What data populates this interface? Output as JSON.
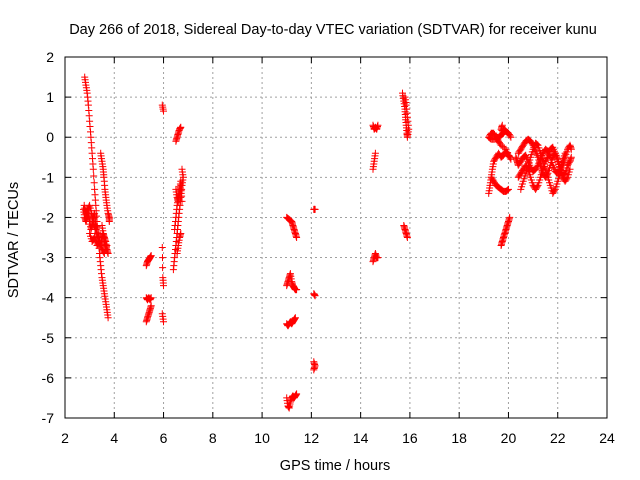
{
  "colors": {
    "series": "#ff0000",
    "grid": "#a0a0a0",
    "axis": "#000000"
  },
  "chart_data": {
    "type": "scatter",
    "title": "Day 266 of 2018, Sidereal Day-to-day VTEC variation (SDTVAR) for receiver kunu",
    "xlabel": "GPS time / hours",
    "ylabel": "SDTVAR / TECUs",
    "xlim": [
      2,
      24
    ],
    "ylim": [
      -7,
      2
    ],
    "xticks": [
      2,
      4,
      6,
      8,
      10,
      12,
      14,
      16,
      18,
      20,
      22,
      24
    ],
    "yticks": [
      -7,
      -6,
      -5,
      -4,
      -3,
      -2,
      -1,
      0,
      1,
      2
    ],
    "grid": true,
    "marker": "+",
    "tracks": [
      [
        [
          2.8,
          1.5
        ],
        [
          2.85,
          1.3
        ],
        [
          2.9,
          1.1
        ],
        [
          2.95,
          0.8
        ],
        [
          3.0,
          0.4
        ],
        [
          3.05,
          0.0
        ],
        [
          3.1,
          -0.4
        ],
        [
          3.15,
          -0.8
        ],
        [
          3.2,
          -1.3
        ],
        [
          3.25,
          -1.7
        ],
        [
          3.3,
          -2.1
        ],
        [
          3.35,
          -2.5
        ],
        [
          3.4,
          -2.9
        ],
        [
          3.45,
          -3.2
        ],
        [
          3.5,
          -3.5
        ],
        [
          3.55,
          -3.7
        ],
        [
          3.6,
          -3.9
        ],
        [
          3.65,
          -4.1
        ],
        [
          3.7,
          -4.3
        ],
        [
          3.75,
          -4.5
        ]
      ],
      [
        [
          2.75,
          -1.8
        ],
        [
          2.8,
          -2.0
        ],
        [
          2.85,
          -2.1
        ],
        [
          2.9,
          -2.0
        ],
        [
          2.95,
          -1.9
        ],
        [
          3.0,
          -2.1
        ],
        [
          3.05,
          -2.3
        ],
        [
          3.1,
          -2.2
        ],
        [
          3.15,
          -2.0
        ],
        [
          3.2,
          -1.9
        ],
        [
          3.25,
          -2.2
        ],
        [
          3.3,
          -2.5
        ],
        [
          3.35,
          -2.4
        ],
        [
          3.4,
          -2.6
        ],
        [
          3.45,
          -2.7
        ],
        [
          3.5,
          -2.5
        ],
        [
          3.55,
          -2.4
        ],
        [
          3.6,
          -2.6
        ],
        [
          3.65,
          -2.8
        ],
        [
          3.7,
          -2.7
        ]
      ],
      [
        [
          2.78,
          -1.7
        ],
        [
          2.85,
          -1.9
        ],
        [
          2.92,
          -1.8
        ],
        [
          3.0,
          -1.7
        ],
        [
          3.08,
          -1.9
        ],
        [
          3.15,
          -2.1
        ],
        [
          3.22,
          -2.3
        ],
        [
          3.3,
          -2.2
        ]
      ],
      [
        [
          3.0,
          -2.4
        ],
        [
          3.1,
          -2.6
        ],
        [
          3.2,
          -2.5
        ],
        [
          3.3,
          -2.7
        ],
        [
          3.4,
          -2.6
        ],
        [
          3.5,
          -2.8
        ],
        [
          3.6,
          -2.9
        ]
      ],
      [
        [
          3.45,
          -0.4
        ],
        [
          3.5,
          -0.6
        ],
        [
          3.55,
          -0.8
        ],
        [
          3.58,
          -1.0
        ],
        [
          3.62,
          -1.3
        ],
        [
          3.66,
          -1.5
        ],
        [
          3.7,
          -1.7
        ],
        [
          3.75,
          -1.9
        ],
        [
          3.8,
          -2.0
        ],
        [
          3.8,
          -2.1
        ]
      ],
      [
        [
          3.5,
          -2.2
        ],
        [
          3.55,
          -2.4
        ],
        [
          3.6,
          -2.5
        ],
        [
          3.65,
          -2.6
        ],
        [
          3.7,
          -2.8
        ],
        [
          3.75,
          -2.9
        ]
      ],
      [
        [
          5.3,
          -3.2
        ],
        [
          5.35,
          -3.1
        ],
        [
          5.4,
          -3.05
        ],
        [
          5.45,
          -3.0
        ],
        [
          5.5,
          -2.95
        ]
      ],
      [
        [
          5.3,
          -4.0
        ],
        [
          5.35,
          -4.05
        ],
        [
          5.4,
          -4.0
        ],
        [
          5.45,
          -4.05
        ],
        [
          5.5,
          -4.0
        ]
      ],
      [
        [
          5.3,
          -4.6
        ],
        [
          5.35,
          -4.5
        ],
        [
          5.4,
          -4.4
        ],
        [
          5.45,
          -4.3
        ],
        [
          5.5,
          -4.2
        ]
      ],
      [
        [
          5.95,
          0.8
        ],
        [
          6.0,
          0.65
        ]
      ],
      [
        [
          5.95,
          -2.75
        ],
        [
          5.97,
          -3.5
        ],
        [
          6.0,
          -3.7
        ]
      ],
      [
        [
          5.95,
          -4.4
        ],
        [
          6.0,
          -4.6
        ]
      ],
      [
        [
          6.4,
          -3.3
        ],
        [
          6.45,
          -3.0
        ],
        [
          6.5,
          -2.7
        ],
        [
          6.55,
          -2.4
        ],
        [
          6.6,
          -2.1
        ],
        [
          6.65,
          -1.8
        ],
        [
          6.7,
          -1.5
        ],
        [
          6.75,
          -1.2
        ],
        [
          6.8,
          -1.0
        ],
        [
          6.75,
          -0.8
        ]
      ],
      [
        [
          6.45,
          -2.3
        ],
        [
          6.5,
          -2.0
        ],
        [
          6.55,
          -1.7
        ],
        [
          6.6,
          -1.5
        ],
        [
          6.65,
          -1.3
        ],
        [
          6.7,
          -1.1
        ]
      ],
      [
        [
          6.55,
          -2.9
        ],
        [
          6.6,
          -2.7
        ],
        [
          6.65,
          -2.5
        ],
        [
          6.7,
          -2.4
        ]
      ],
      [
        [
          6.5,
          -0.1
        ],
        [
          6.55,
          0.0
        ],
        [
          6.6,
          0.1
        ],
        [
          6.65,
          0.2
        ],
        [
          6.7,
          0.25
        ]
      ],
      [
        [
          6.5,
          -1.3
        ],
        [
          6.55,
          -1.5
        ],
        [
          6.6,
          -1.6
        ],
        [
          6.65,
          -1.4
        ],
        [
          6.7,
          -1.2
        ],
        [
          6.75,
          -1.6
        ]
      ],
      [
        [
          11.0,
          -2.0
        ],
        [
          11.1,
          -2.05
        ],
        [
          11.2,
          -2.1
        ],
        [
          11.25,
          -2.2
        ],
        [
          11.3,
          -2.3
        ],
        [
          11.35,
          -2.4
        ],
        [
          11.4,
          -2.5
        ]
      ],
      [
        [
          11.0,
          -3.7
        ],
        [
          11.05,
          -3.6
        ],
        [
          11.1,
          -3.5
        ],
        [
          11.15,
          -3.4
        ],
        [
          11.2,
          -3.6
        ],
        [
          11.25,
          -3.7
        ],
        [
          11.3,
          -3.75
        ],
        [
          11.35,
          -3.8
        ],
        [
          11.4,
          -3.8
        ]
      ],
      [
        [
          11.0,
          -4.65
        ],
        [
          11.05,
          -4.7
        ],
        [
          11.1,
          -4.65
        ],
        [
          11.15,
          -4.6
        ],
        [
          11.2,
          -4.65
        ],
        [
          11.25,
          -4.6
        ],
        [
          11.3,
          -4.55
        ],
        [
          11.35,
          -4.5
        ]
      ],
      [
        [
          11.0,
          -6.5
        ],
        [
          11.05,
          -6.7
        ],
        [
          11.1,
          -6.75
        ],
        [
          11.15,
          -6.6
        ],
        [
          11.2,
          -6.5
        ],
        [
          11.25,
          -6.45
        ],
        [
          11.3,
          -6.5
        ],
        [
          11.35,
          -6.45
        ],
        [
          11.4,
          -6.4
        ]
      ],
      [
        [
          12.1,
          -1.8
        ],
        [
          12.15,
          -1.8
        ]
      ],
      [
        [
          12.1,
          -3.9
        ],
        [
          12.15,
          -3.95
        ]
      ],
      [
        [
          12.1,
          -5.6
        ],
        [
          12.15,
          -5.7
        ],
        [
          12.1,
          -5.8
        ]
      ],
      [
        [
          14.5,
          -0.8
        ],
        [
          14.55,
          -0.6
        ],
        [
          14.6,
          -0.4
        ]
      ],
      [
        [
          14.5,
          -3.1
        ],
        [
          14.55,
          -3.0
        ],
        [
          14.6,
          -2.9
        ],
        [
          14.65,
          -3.0
        ],
        [
          14.7,
          -3.0
        ]
      ],
      [
        [
          14.5,
          0.3
        ],
        [
          14.55,
          0.2
        ],
        [
          14.6,
          0.25
        ],
        [
          14.65,
          0.2
        ],
        [
          14.7,
          0.3
        ]
      ],
      [
        [
          15.7,
          1.1
        ],
        [
          15.75,
          0.9
        ],
        [
          15.8,
          0.7
        ],
        [
          15.82,
          0.5
        ],
        [
          15.85,
          0.3
        ],
        [
          15.88,
          0.1
        ],
        [
          15.9,
          -0.0
        ],
        [
          15.95,
          0.2
        ],
        [
          15.9,
          0.5
        ],
        [
          15.85,
          0.8
        ],
        [
          15.8,
          1.0
        ]
      ],
      [
        [
          15.75,
          -2.2
        ],
        [
          15.8,
          -2.3
        ],
        [
          15.85,
          -2.4
        ],
        [
          15.9,
          -2.5
        ]
      ],
      [
        [
          19.2,
          -1.4
        ],
        [
          19.25,
          -1.2
        ],
        [
          19.3,
          -1.0
        ],
        [
          19.35,
          -0.8
        ],
        [
          19.4,
          -0.6
        ],
        [
          19.5,
          -0.5
        ],
        [
          19.6,
          -0.4
        ],
        [
          19.7,
          -0.5
        ],
        [
          19.8,
          -0.45
        ],
        [
          19.9,
          -0.35
        ],
        [
          20.0,
          -0.45
        ],
        [
          20.1,
          -0.55
        ],
        [
          19.9,
          -0.3
        ],
        [
          19.7,
          -0.2
        ],
        [
          19.6,
          -0.1
        ],
        [
          19.5,
          0.0
        ],
        [
          19.4,
          0.1
        ],
        [
          19.3,
          0.1
        ],
        [
          19.2,
          0.0
        ],
        [
          19.3,
          -0.05
        ],
        [
          19.45,
          -0.05
        ],
        [
          19.6,
          0.0
        ],
        [
          19.7,
          0.05
        ],
        [
          19.8,
          0.1
        ],
        [
          19.7,
          0.2
        ],
        [
          19.75,
          0.3
        ]
      ],
      [
        [
          19.3,
          -1.0
        ],
        [
          19.4,
          -1.1
        ],
        [
          19.5,
          -1.2
        ],
        [
          19.6,
          -1.25
        ],
        [
          19.7,
          -1.3
        ],
        [
          19.8,
          -1.35
        ],
        [
          19.9,
          -1.35
        ],
        [
          20.0,
          -1.3
        ]
      ],
      [
        [
          19.7,
          -2.7
        ],
        [
          19.75,
          -2.6
        ],
        [
          19.8,
          -2.5
        ],
        [
          19.85,
          -2.4
        ],
        [
          19.9,
          -2.3
        ],
        [
          19.95,
          -2.2
        ],
        [
          20.0,
          -2.1
        ],
        [
          20.05,
          -2.0
        ]
      ],
      [
        [
          19.8,
          0.2
        ],
        [
          19.9,
          0.15
        ],
        [
          20.0,
          0.1
        ],
        [
          20.1,
          0.0
        ]
      ],
      [
        [
          20.5,
          -1.3
        ],
        [
          20.6,
          -1.1
        ],
        [
          20.7,
          -0.9
        ],
        [
          20.8,
          -0.7
        ],
        [
          20.9,
          -0.5
        ],
        [
          21.0,
          -0.3
        ],
        [
          21.1,
          -0.15
        ],
        [
          21.2,
          -0.2
        ],
        [
          21.3,
          -0.4
        ],
        [
          21.4,
          -0.6
        ],
        [
          21.5,
          -0.8
        ],
        [
          21.6,
          -1.0
        ],
        [
          21.7,
          -1.2
        ],
        [
          21.8,
          -1.4
        ],
        [
          21.9,
          -1.3
        ],
        [
          22.0,
          -1.1
        ],
        [
          22.1,
          -0.9
        ],
        [
          22.2,
          -0.7
        ],
        [
          22.3,
          -0.5
        ],
        [
          22.4,
          -0.3
        ],
        [
          22.5,
          -0.2
        ],
        [
          22.55,
          -0.3
        ]
      ],
      [
        [
          20.4,
          -0.4
        ],
        [
          20.5,
          -0.3
        ],
        [
          20.6,
          -0.2
        ],
        [
          20.7,
          -0.1
        ],
        [
          20.8,
          -0.05
        ],
        [
          20.9,
          -0.1
        ],
        [
          21.0,
          -0.2
        ],
        [
          21.1,
          -0.35
        ],
        [
          21.2,
          -0.5
        ],
        [
          21.3,
          -0.7
        ],
        [
          21.4,
          -0.9
        ],
        [
          21.5,
          -1.0
        ],
        [
          21.6,
          -0.9
        ],
        [
          21.7,
          -0.7
        ],
        [
          21.8,
          -0.5
        ],
        [
          21.9,
          -0.4
        ],
        [
          22.0,
          -0.55
        ],
        [
          22.1,
          -0.75
        ],
        [
          22.2,
          -0.95
        ],
        [
          22.3,
          -0.9
        ],
        [
          22.4,
          -0.7
        ],
        [
          22.5,
          -0.6
        ],
        [
          22.55,
          -0.5
        ]
      ],
      [
        [
          20.4,
          -1.0
        ],
        [
          20.5,
          -0.9
        ],
        [
          20.6,
          -0.8
        ],
        [
          20.7,
          -0.7
        ],
        [
          20.8,
          -0.8
        ],
        [
          20.9,
          -1.0
        ],
        [
          21.0,
          -1.2
        ],
        [
          21.1,
          -1.3
        ],
        [
          21.2,
          -1.2
        ],
        [
          21.3,
          -1.0
        ],
        [
          21.4,
          -0.8
        ],
        [
          21.5,
          -0.6
        ],
        [
          21.6,
          -0.5
        ],
        [
          21.7,
          -0.3
        ],
        [
          21.8,
          -0.25
        ],
        [
          21.9,
          -0.4
        ],
        [
          22.0,
          -0.6
        ],
        [
          22.1,
          -0.8
        ],
        [
          22.2,
          -1.0
        ],
        [
          22.3,
          -1.1
        ],
        [
          22.4,
          -1.0
        ],
        [
          22.5,
          -0.8
        ]
      ],
      [
        [
          20.3,
          -0.5
        ],
        [
          20.35,
          -0.6
        ],
        [
          20.4,
          -0.7
        ],
        [
          20.5,
          -0.6
        ],
        [
          20.6,
          -0.5
        ],
        [
          20.7,
          -0.45
        ],
        [
          20.8,
          -0.6
        ],
        [
          20.9,
          -0.75
        ],
        [
          21.0,
          -0.85
        ],
        [
          21.1,
          -0.8
        ],
        [
          21.2,
          -0.7
        ],
        [
          21.3,
          -0.55
        ],
        [
          21.4,
          -0.4
        ],
        [
          21.5,
          -0.3
        ],
        [
          21.6,
          -0.35
        ],
        [
          21.7,
          -0.5
        ],
        [
          21.8,
          -0.7
        ],
        [
          21.9,
          -0.85
        ],
        [
          22.0,
          -0.9
        ],
        [
          22.1,
          -0.8
        ],
        [
          22.2,
          -0.6
        ],
        [
          22.3,
          -0.4
        ]
      ]
    ]
  }
}
